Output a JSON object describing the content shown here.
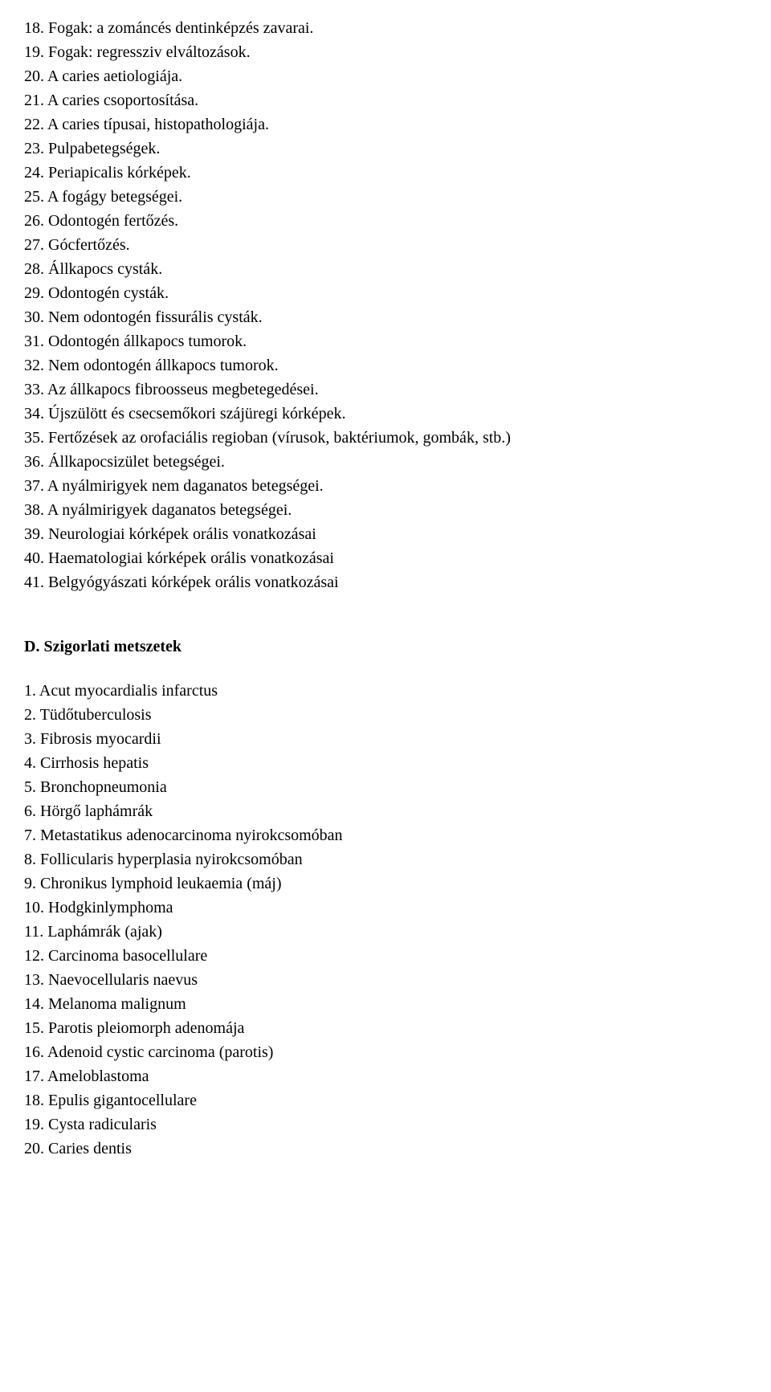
{
  "listB": {
    "items": [
      "18. Fogak: a zománcés dentinképzés zavarai.",
      "19. Fogak: regressziv elváltozások.",
      "20. A caries aetiologiája.",
      "21. A caries csoportosítása.",
      "22. A caries típusai, histopathologiája.",
      "23. Pulpabetegségek.",
      "24. Periapicalis kórképek.",
      "25. A fogágy betegségei.",
      "26. Odontogén fertőzés.",
      "27. Gócfertőzés.",
      "28. Állkapocs cysták.",
      "29. Odontogén cysták.",
      "30. Nem odontogén fissurális cysták.",
      "31. Odontogén állkapocs tumorok.",
      "32. Nem odontogén állkapocs tumorok.",
      "33. Az állkapocs fibroosseus megbetegedései.",
      "34. Újszülött és csecsemőkori szájüregi kórképek.",
      "35. Fertőzések az orofaciális regioban (vírusok, baktériumok, gombák, stb.)",
      "36. Állkapocsizület betegségei.",
      "37. A nyálmirigyek nem daganatos betegségei.",
      "38. A nyálmirigyek daganatos betegségei.",
      "39. Neurologiai kórképek orális vonatkozásai",
      "40. Haematologiai kórképek orális vonatkozásai",
      "41. Belgyógyászati kórképek orális vonatkozásai"
    ]
  },
  "sectionD": {
    "heading": "D. Szigorlati metszetek"
  },
  "listD": {
    "items": [
      "1. Acut myocardialis infarctus",
      "2. Tüdőtuberculosis",
      "3. Fibrosis myocardii",
      "4. Cirrhosis hepatis",
      "5. Bronchopneumonia",
      "6. Hörgő laphámrák",
      "7. Metastatikus adenocarcinoma nyirokcsomóban",
      "8. Follicularis hyperplasia nyirokcsomóban",
      "9. Chronikus lymphoid leukaemia (máj)",
      "10. Hodgkinlymphoma",
      "11. Laphámrák (ajak)",
      "12. Carcinoma basocellulare",
      "13. Naevocellularis naevus",
      "14. Melanoma malignum",
      "15. Parotis pleiomorph adenomája",
      "16. Adenoid cystic carcinoma (parotis)",
      "17. Ameloblastoma",
      "18. Epulis gigantocellulare",
      "19. Cysta radicularis",
      "20. Caries dentis"
    ]
  }
}
